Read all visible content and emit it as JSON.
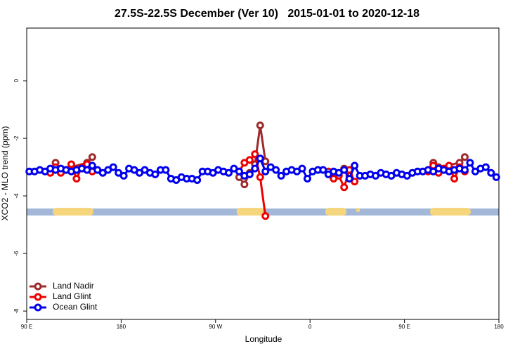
{
  "chart_data": {
    "type": "line",
    "title": "27.5S-22.5S December (Ver 10)   2015-01-01 to 2020-12-18",
    "x_label": "Longitude",
    "y_label": "XCO2 - MLO trend (ppm)",
    "xlim": [
      90,
      540
    ],
    "ylim": [
      -8.29,
      1.83
    ],
    "xticks": [
      {
        "value": 90,
        "label": "90 E"
      },
      180,
      {
        "value": 270,
        "label": "90 W"
      },
      {
        "value": 360,
        "label": "0"
      },
      {
        "value": 450,
        "label": "90 E"
      },
      {
        "value": 540,
        "label": "180"
      }
    ],
    "yticks": [
      -8,
      -6,
      -4,
      -2,
      0
    ],
    "legend": "bottom-left",
    "series": [
      {
        "name": "Land Nadir",
        "color": "#9e2a2b",
        "x": [
          117.5,
          122.5,
          147.5,
          152.5,
          220,
          292.5,
          297.5,
          302.5,
          307.5,
          312.5,
          317.5,
          350,
          392.5,
          397.5,
          440,
          477.5,
          482.5,
          502.5,
          507.5
        ],
        "values": [
          -2.85,
          -3.1,
          -2.85,
          -2.65,
          null,
          -3.35,
          -3.6,
          -3.2,
          -2.9,
          -1.55,
          -2.8,
          null,
          -3.05,
          -3.3,
          null,
          -2.85,
          -3.0,
          -2.85,
          -2.65
        ]
      },
      {
        "name": "Land Glint",
        "color": "#ee0000",
        "x": [
          112.5,
          117.5,
          122.5,
          127.5,
          132.5,
          137.5,
          142.5,
          147.5,
          152.5,
          220,
          292.5,
          297.5,
          302.5,
          307.5,
          312.5,
          317.5,
          350,
          377.5,
          382.5,
          387.5,
          392.5,
          397.5,
          402.5,
          440,
          472.5,
          477.5,
          482.5,
          487.5,
          492.5,
          497.5,
          502.5,
          507.5
        ],
        "values": [
          -3.2,
          -3.0,
          -3.2,
          -3.1,
          -2.9,
          -3.4,
          -3.0,
          -2.9,
          -3.15,
          null,
          -3.15,
          -2.85,
          -2.75,
          -2.55,
          -3.35,
          -4.7,
          null,
          -3.15,
          -3.4,
          -3.3,
          -3.7,
          -3.1,
          -3.5,
          null,
          -3.15,
          -2.95,
          -3.2,
          -3.05,
          -2.95,
          -3.4,
          -3.0,
          -3.15
        ]
      },
      {
        "name": "Ocean Glint",
        "color": "#0000ee",
        "x": [
          92.5,
          97.5,
          102.5,
          107.5,
          112.5,
          117.5,
          122.5,
          127.5,
          132.5,
          137.5,
          142.5,
          147.5,
          152.5,
          157.5,
          162.5,
          167.5,
          172.5,
          177.5,
          182.5,
          187.5,
          192.5,
          197.5,
          202.5,
          207.5,
          212.5,
          217.5,
          222.5,
          227.5,
          232.5,
          237.5,
          242.5,
          247.5,
          252.5,
          257.5,
          262.5,
          267.5,
          272.5,
          277.5,
          282.5,
          287.5,
          292.5,
          297.5,
          302.5,
          307.5,
          312.5,
          317.5,
          322.5,
          327.5,
          332.5,
          337.5,
          342.5,
          347.5,
          352.5,
          357.5,
          362.5,
          367.5,
          372.5,
          377.5,
          382.5,
          387.5,
          392.5,
          397.5,
          402.5,
          407.5,
          412.5,
          417.5,
          422.5,
          427.5,
          432.5,
          437.5,
          442.5,
          447.5,
          452.5,
          457.5,
          462.5,
          467.5,
          472.5,
          477.5,
          482.5,
          487.5,
          492.5,
          497.5,
          502.5,
          507.5,
          512.5,
          517.5,
          522.5,
          527.5,
          532.5,
          537.5
        ],
        "values": [
          -3.15,
          -3.15,
          -3.1,
          -3.15,
          -3.05,
          -3.1,
          -3.05,
          -3.1,
          -3.15,
          -3.1,
          -3.05,
          -3.1,
          -2.95,
          -3.1,
          -3.2,
          -3.1,
          -3.0,
          -3.2,
          -3.3,
          -3.05,
          -3.1,
          -3.2,
          -3.1,
          -3.2,
          -3.25,
          -3.1,
          -3.1,
          -3.4,
          -3.45,
          -3.35,
          -3.4,
          -3.4,
          -3.45,
          -3.15,
          -3.15,
          -3.2,
          -3.1,
          -3.15,
          -3.2,
          -3.05,
          -3.15,
          -3.3,
          -3.25,
          -3.05,
          -2.7,
          -3.15,
          -3.0,
          -3.1,
          -3.3,
          -3.15,
          -3.1,
          -3.15,
          -3.05,
          -3.4,
          -3.15,
          -3.1,
          -3.1,
          -3.25,
          -3.15,
          -3.2,
          -3.1,
          -3.4,
          -2.95,
          -3.3,
          -3.3,
          -3.25,
          -3.3,
          -3.2,
          -3.25,
          -3.3,
          -3.2,
          -3.25,
          -3.3,
          -3.2,
          -3.15,
          -3.15,
          -3.1,
          -3.15,
          -3.05,
          -3.1,
          -3.15,
          -3.1,
          -3.05,
          -3.1,
          -2.85,
          -3.15,
          -3.05,
          -3.0,
          -3.2,
          -3.35
        ]
      }
    ]
  }
}
